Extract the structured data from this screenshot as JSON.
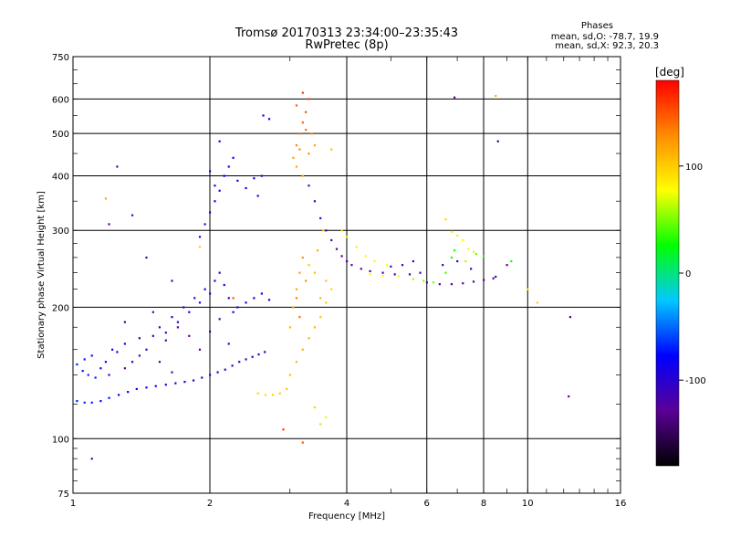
{
  "chart_data": {
    "type": "scatter",
    "title": "Tromsø 20170313 23:34:00–23:35:43",
    "subtitle": "RwPretec (8p)",
    "xlabel": "Frequency [MHz]",
    "ylabel": "Stationary phase Virtual Height [km]",
    "x_scale": "log",
    "y_scale": "log",
    "xlim": [
      1,
      16
    ],
    "ylim": [
      75,
      750
    ],
    "x_ticks": [
      1,
      2,
      4,
      6,
      8,
      10,
      16
    ],
    "y_ticks": [
      75,
      100,
      200,
      300,
      400,
      500,
      600,
      750
    ],
    "x_ticklabels": [
      "1",
      "2",
      "4",
      "6",
      "8",
      "10",
      "16"
    ],
    "y_ticklabels": [
      "75",
      "100",
      "200",
      "300",
      "400",
      "500",
      "600",
      "750"
    ],
    "grid": true,
    "info": {
      "heading": "Phases",
      "line1": "mean, sd,O:  -78.7, 19.9",
      "line2": "mean, sd,X:  92.3, 20.3"
    },
    "colorbar": {
      "label": "[deg]",
      "range": [
        -180,
        180
      ],
      "ticks": [
        100,
        0,
        -100
      ],
      "tick_labels": [
        "100",
        "0",
        "-100"
      ],
      "colors": [
        "#000000",
        "#5a0096",
        "#0000ff",
        "#00c8ff",
        "#00ff00",
        "#ffff00",
        "#ff8c00",
        "#ff0000"
      ]
    },
    "series": [
      {
        "points": [
          [
            1.02,
            122,
            -68
          ],
          [
            1.06,
            121,
            -66
          ],
          [
            1.1,
            121,
            -70
          ],
          [
            1.15,
            122,
            -72
          ],
          [
            1.2,
            124,
            -75
          ],
          [
            1.26,
            126,
            -78
          ],
          [
            1.32,
            128,
            -80
          ],
          [
            1.38,
            130,
            -82
          ],
          [
            1.45,
            131,
            -84
          ],
          [
            1.52,
            132,
            -86
          ],
          [
            1.6,
            133,
            -88
          ],
          [
            1.68,
            134,
            -90
          ],
          [
            1.76,
            135,
            -92
          ],
          [
            1.84,
            136,
            -94
          ],
          [
            1.92,
            138,
            -96
          ],
          [
            2.0,
            140,
            -98
          ],
          [
            2.08,
            142,
            -100
          ],
          [
            2.16,
            144,
            -102
          ],
          [
            2.24,
            147,
            -104
          ],
          [
            2.32,
            150,
            -106
          ],
          [
            2.4,
            152,
            -106
          ],
          [
            2.48,
            154,
            -106
          ],
          [
            2.56,
            156,
            -106
          ],
          [
            2.64,
            158,
            -106
          ],
          [
            1.02,
            148,
            -70
          ],
          [
            1.06,
            152,
            -72
          ],
          [
            1.1,
            155,
            -74
          ],
          [
            1.05,
            143,
            -71
          ],
          [
            1.08,
            140,
            -69
          ],
          [
            1.12,
            138,
            -70
          ],
          [
            1.15,
            145,
            -76
          ],
          [
            1.18,
            150,
            -80
          ],
          [
            1.22,
            160,
            -85
          ],
          [
            1.25,
            158,
            -88
          ],
          [
            1.3,
            165,
            -92
          ],
          [
            1.35,
            150,
            -96
          ],
          [
            1.4,
            170,
            -98
          ],
          [
            1.45,
            160,
            -100
          ],
          [
            1.5,
            172,
            -102
          ],
          [
            1.55,
            180,
            -104
          ],
          [
            1.6,
            175,
            -100
          ],
          [
            1.65,
            190,
            -105
          ],
          [
            1.7,
            185,
            -98
          ],
          [
            1.75,
            200,
            -102
          ],
          [
            1.8,
            195,
            -96
          ],
          [
            1.85,
            210,
            -100
          ],
          [
            1.9,
            205,
            -95
          ],
          [
            1.95,
            220,
            -98
          ],
          [
            2.0,
            215,
            -92
          ],
          [
            2.05,
            230,
            -96
          ],
          [
            2.1,
            240,
            -100
          ],
          [
            2.15,
            225,
            -94
          ],
          [
            2.2,
            210,
            -98
          ],
          [
            2.25,
            195,
            -92
          ],
          [
            2.3,
            200,
            -90
          ],
          [
            2.4,
            205,
            -88
          ],
          [
            2.5,
            210,
            -86
          ],
          [
            2.6,
            215,
            -84
          ],
          [
            2.7,
            208,
            -80
          ],
          [
            1.5,
            195,
            -120
          ],
          [
            1.6,
            168,
            -118
          ],
          [
            1.7,
            180,
            -122
          ],
          [
            1.8,
            172,
            -126
          ],
          [
            1.9,
            160,
            -130
          ],
          [
            2.0,
            176,
            -115
          ],
          [
            2.1,
            188,
            -124
          ],
          [
            2.2,
            165,
            -110
          ],
          [
            1.3,
            145,
            -125
          ],
          [
            1.4,
            155,
            -118
          ],
          [
            1.55,
            150,
            -112
          ],
          [
            1.9,
            290,
            -95
          ],
          [
            1.95,
            310,
            -92
          ],
          [
            2.0,
            330,
            -88
          ],
          [
            2.05,
            350,
            -85
          ],
          [
            2.1,
            370,
            -82
          ],
          [
            2.15,
            400,
            -80
          ],
          [
            2.2,
            420,
            -82
          ],
          [
            2.25,
            440,
            -85
          ],
          [
            2.0,
            410,
            -90
          ],
          [
            2.05,
            380,
            -88
          ],
          [
            2.3,
            390,
            -84
          ],
          [
            2.4,
            375,
            -86
          ],
          [
            2.5,
            395,
            -88
          ],
          [
            2.6,
            400,
            -90
          ],
          [
            2.55,
            360,
            -92
          ],
          [
            2.62,
            550,
            -92
          ],
          [
            2.7,
            540,
            -94
          ],
          [
            2.1,
            480,
            -90
          ],
          [
            3.3,
            380,
            -110
          ],
          [
            3.4,
            350,
            -112
          ],
          [
            3.5,
            320,
            -115
          ],
          [
            3.6,
            300,
            -118
          ],
          [
            3.7,
            285,
            -120
          ],
          [
            3.8,
            272,
            -122
          ],
          [
            3.9,
            262,
            -124
          ],
          [
            4.0,
            255,
            -126
          ],
          [
            4.1,
            250,
            -128
          ],
          [
            4.3,
            245,
            -128
          ],
          [
            4.5,
            242,
            -128
          ],
          [
            4.8,
            240,
            -126
          ],
          [
            5.1,
            238,
            -124
          ],
          [
            5.5,
            238,
            -120
          ],
          [
            5.8,
            240,
            -118
          ],
          [
            5.3,
            250,
            -118
          ],
          [
            5.6,
            255,
            -116
          ],
          [
            5.0,
            248,
            -120
          ],
          [
            6.0,
            228,
            -122
          ],
          [
            6.4,
            226,
            -124
          ],
          [
            6.8,
            226,
            -126
          ],
          [
            7.2,
            227,
            -126
          ],
          [
            7.6,
            229,
            -124
          ],
          [
            8.0,
            231,
            -122
          ],
          [
            8.4,
            233,
            -120
          ],
          [
            6.5,
            250,
            -110
          ],
          [
            7.0,
            255,
            -108
          ],
          [
            7.5,
            245,
            -112
          ],
          [
            8.5,
            235,
            -130
          ],
          [
            9.0,
            250,
            -125
          ],
          [
            6.9,
            605,
            -125
          ],
          [
            8.6,
            480,
            -140
          ],
          [
            1.25,
            420,
            -125
          ],
          [
            1.2,
            310,
            -130
          ],
          [
            1.1,
            90,
            -125
          ],
          [
            12.4,
            190,
            -135
          ],
          [
            12.3,
            125,
            -130
          ],
          [
            1.65,
            230,
            -110
          ],
          [
            1.35,
            325,
            -120
          ],
          [
            1.2,
            140,
            -115
          ],
          [
            1.45,
            260,
            -118
          ],
          [
            1.3,
            185,
            -135
          ],
          [
            1.65,
            142,
            -120
          ]
        ]
      },
      {
        "points": [
          [
            2.55,
            127,
            95
          ],
          [
            2.65,
            126,
            95
          ],
          [
            2.75,
            126,
            98
          ],
          [
            2.85,
            127,
            100
          ],
          [
            2.95,
            130,
            102
          ],
          [
            3.0,
            140,
            105
          ],
          [
            3.1,
            150,
            108
          ],
          [
            3.2,
            160,
            110
          ],
          [
            3.3,
            170,
            112
          ],
          [
            3.4,
            180,
            108
          ],
          [
            3.5,
            190,
            104
          ],
          [
            3.6,
            205,
            100
          ],
          [
            3.7,
            220,
            96
          ],
          [
            3.0,
            180,
            110
          ],
          [
            3.05,
            200,
            115
          ],
          [
            3.1,
            220,
            118
          ],
          [
            3.15,
            240,
            120
          ],
          [
            3.2,
            260,
            125
          ],
          [
            3.25,
            230,
            128
          ],
          [
            3.1,
            210,
            135
          ],
          [
            3.15,
            190,
            140
          ],
          [
            3.3,
            250,
            100
          ],
          [
            3.4,
            240,
            105
          ],
          [
            3.45,
            270,
            112
          ],
          [
            3.5,
            210,
            108
          ],
          [
            3.6,
            230,
            104
          ],
          [
            3.05,
            440,
            120
          ],
          [
            3.1,
            470,
            130
          ],
          [
            3.15,
            500,
            138
          ],
          [
            3.2,
            530,
            145
          ],
          [
            3.25,
            560,
            150
          ],
          [
            3.3,
            600,
            155
          ],
          [
            3.2,
            620,
            160
          ],
          [
            3.1,
            580,
            145
          ],
          [
            3.15,
            460,
            130
          ],
          [
            3.3,
            450,
            125
          ],
          [
            3.35,
            500,
            130
          ],
          [
            3.4,
            470,
            120
          ],
          [
            3.25,
            510,
            140
          ],
          [
            3.1,
            420,
            118
          ],
          [
            3.2,
            400,
            115
          ],
          [
            3.9,
            300,
            90
          ],
          [
            4.0,
            290,
            88
          ],
          [
            4.2,
            275,
            85
          ],
          [
            4.4,
            262,
            82
          ],
          [
            4.6,
            255,
            80
          ],
          [
            4.9,
            250,
            78
          ],
          [
            4.5,
            238,
            72
          ],
          [
            4.8,
            236,
            74
          ],
          [
            5.2,
            236,
            76
          ],
          [
            5.6,
            232,
            60
          ],
          [
            5.9,
            230,
            55
          ],
          [
            6.2,
            228,
            50
          ],
          [
            6.6,
            240,
            40
          ],
          [
            6.8,
            260,
            30
          ],
          [
            6.9,
            270,
            28
          ],
          [
            7.3,
            255,
            60
          ],
          [
            7.7,
            265,
            45
          ],
          [
            8.0,
            262,
            35
          ],
          [
            9.2,
            255,
            30
          ],
          [
            8.5,
            610,
            110
          ],
          [
            10.5,
            205,
            100
          ],
          [
            10.0,
            220,
            90
          ],
          [
            3.4,
            118,
            95
          ],
          [
            3.6,
            112,
            70
          ],
          [
            3.5,
            108,
            60
          ],
          [
            1.18,
            355,
            115
          ],
          [
            1.9,
            275,
            100
          ],
          [
            2.25,
            210,
            150
          ],
          [
            3.55,
            300,
            100
          ],
          [
            3.7,
            460,
            105
          ],
          [
            2.9,
            105,
            160
          ],
          [
            3.2,
            98,
            150
          ],
          [
            6.6,
            318,
            95
          ],
          [
            6.8,
            298,
            90
          ],
          [
            7.0,
            292,
            85
          ],
          [
            7.2,
            285,
            80
          ],
          [
            7.4,
            272,
            75
          ],
          [
            7.6,
            268,
            70
          ]
        ]
      }
    ]
  }
}
